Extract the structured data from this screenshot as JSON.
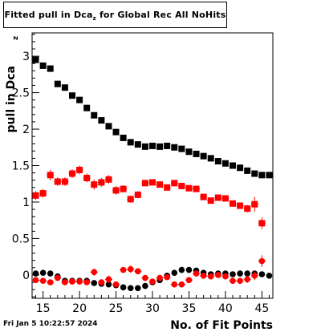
{
  "title": {
    "prefix": "Fitted pull in Dca",
    "sub": "z",
    "suffix": "  for Global Rec All NoHits"
  },
  "footer_date": "Fri Jan  5 10:22:57 2024",
  "chart_data": {
    "type": "scatter",
    "title": "Fitted pull in Dca_z  for Global Rec All NoHits",
    "xlabel": "No. of Fit Points",
    "ylabel": "pull in Dca_z",
    "ylabel_sub": "z",
    "xlim": [
      13.5,
      46.5
    ],
    "ylim": [
      -0.32,
      3.32
    ],
    "xticks": [
      15,
      20,
      25,
      30,
      35,
      40,
      45
    ],
    "yticks": [
      0,
      0.5,
      1,
      1.5,
      2,
      2.5,
      3
    ],
    "ytick_labels": [
      "0",
      "0.5",
      "1",
      "1.5",
      "2",
      "2.5",
      "3"
    ],
    "grid": false,
    "series": [
      {
        "color": "#000000",
        "marker": "square",
        "x": [
          14,
          15,
          16,
          17,
          18,
          19,
          20,
          21,
          22,
          23,
          24,
          25,
          26,
          27,
          28,
          29,
          30,
          31,
          32,
          33,
          34,
          35,
          36,
          37,
          38,
          39,
          40,
          41,
          42,
          43,
          44,
          45,
          46
        ],
        "y": [
          2.95,
          2.87,
          2.83,
          2.62,
          2.57,
          2.46,
          2.4,
          2.29,
          2.19,
          2.12,
          2.04,
          1.96,
          1.88,
          1.82,
          1.79,
          1.76,
          1.77,
          1.76,
          1.77,
          1.75,
          1.73,
          1.69,
          1.66,
          1.63,
          1.6,
          1.56,
          1.53,
          1.5,
          1.47,
          1.43,
          1.39,
          1.37,
          1.37
        ]
      },
      {
        "color": "#ff0000",
        "marker": "square",
        "x": [
          14,
          15,
          16,
          17,
          18,
          19,
          20,
          21,
          22,
          23,
          24,
          25,
          26,
          27,
          28,
          29,
          30,
          31,
          32,
          33,
          34,
          35,
          36,
          37,
          38,
          39,
          40,
          41,
          42,
          43,
          44,
          45
        ],
        "y": [
          1.09,
          1.12,
          1.37,
          1.28,
          1.28,
          1.39,
          1.44,
          1.33,
          1.24,
          1.27,
          1.31,
          1.16,
          1.18,
          1.04,
          1.1,
          1.26,
          1.27,
          1.24,
          1.2,
          1.26,
          1.22,
          1.19,
          1.18,
          1.07,
          1.02,
          1.06,
          1.05,
          0.98,
          0.95,
          0.91,
          0.97,
          0.71
        ],
        "yerr": [
          0.06,
          0.06,
          0.07,
          0.06,
          0.06,
          0.06,
          0.06,
          0.06,
          0.07,
          0.06,
          0.06,
          0.06,
          0.05,
          0.05,
          0.05,
          0.04,
          0.04,
          0.04,
          0.04,
          0.04,
          0.04,
          0.04,
          0.04,
          0.04,
          0.04,
          0.04,
          0.04,
          0.04,
          0.04,
          0.05,
          0.1,
          0.08
        ]
      },
      {
        "color": "#000000",
        "marker": "circle",
        "x": [
          14,
          15,
          16,
          17,
          18,
          19,
          20,
          21,
          22,
          23,
          24,
          25,
          26,
          27,
          28,
          29,
          30,
          31,
          32,
          33,
          34,
          35,
          36,
          37,
          38,
          39,
          40,
          41,
          42,
          43,
          44,
          45,
          46
        ],
        "y": [
          0.02,
          0.03,
          0.02,
          -0.02,
          -0.08,
          -0.08,
          -0.08,
          -0.08,
          -0.11,
          -0.12,
          -0.13,
          -0.14,
          -0.17,
          -0.18,
          -0.18,
          -0.15,
          -0.1,
          -0.07,
          -0.01,
          0.03,
          0.07,
          0.07,
          0.06,
          0.03,
          0.01,
          0.02,
          0.02,
          0.01,
          0.02,
          0.02,
          0.02,
          0.01,
          -0.01
        ]
      },
      {
        "color": "#ff0000",
        "marker": "circle",
        "x": [
          14,
          15,
          16,
          17,
          18,
          19,
          20,
          21,
          22,
          23,
          24,
          25,
          26,
          27,
          28,
          29,
          30,
          31,
          32,
          33,
          34,
          35,
          36,
          37,
          38,
          39,
          40,
          41,
          42,
          43,
          44,
          45
        ],
        "y": [
          -0.07,
          -0.08,
          -0.1,
          -0.04,
          -0.1,
          -0.09,
          -0.09,
          -0.1,
          0.04,
          -0.1,
          -0.06,
          -0.13,
          0.07,
          0.08,
          0.05,
          -0.04,
          -0.09,
          -0.04,
          -0.03,
          -0.13,
          -0.13,
          -0.07,
          0.02,
          -0.01,
          -0.02,
          0.0,
          -0.02,
          -0.08,
          -0.08,
          -0.06,
          -0.01,
          0.19
        ],
        "yerr": [
          0.04,
          0.04,
          0.04,
          0.04,
          0.04,
          0.04,
          0.04,
          0.04,
          0.05,
          0.04,
          0.05,
          0.04,
          0.04,
          0.05,
          0.04,
          0.04,
          0.04,
          0.04,
          0.04,
          0.04,
          0.04,
          0.04,
          0.04,
          0.04,
          0.04,
          0.04,
          0.04,
          0.04,
          0.04,
          0.05,
          0.06,
          0.08
        ]
      }
    ]
  }
}
